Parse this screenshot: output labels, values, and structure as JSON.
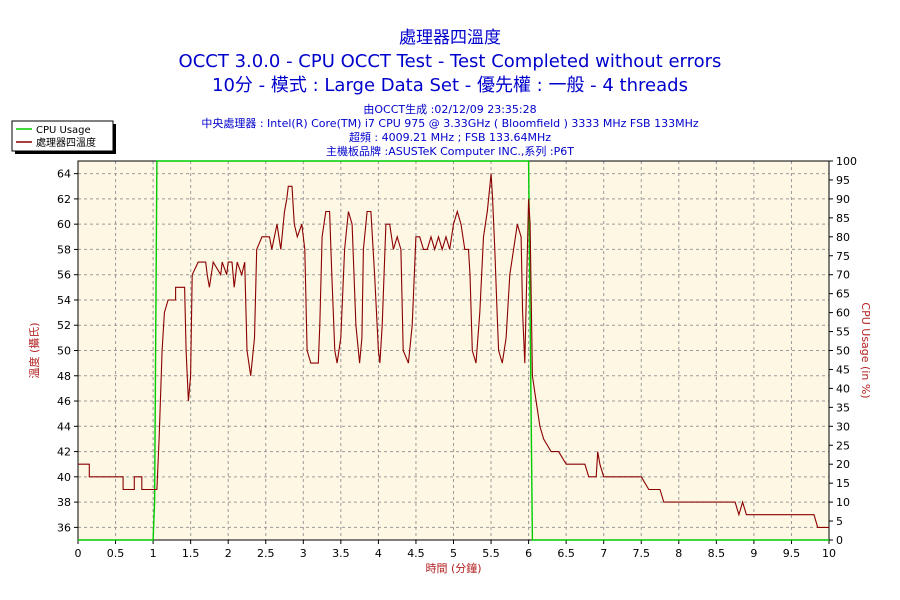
{
  "header": {
    "title": "處理器四溫度",
    "subtitle1": "OCCT 3.0.0 - CPU OCCT Test - Test Completed without errors",
    "subtitle2": "10分 - 模式 : Large Data Set - 優先權 : 一般 - 4 threads"
  },
  "info": {
    "line1": "由OCCT生成 :02/12/09 23:35:28",
    "line2": "中央處理器 : Intel(R) Core(TM) i7 CPU 975 @ 3.33GHz ( Bloomfield ) 3333 MHz FSB 133MHz",
    "line3": "超頻 : 4009.21 MHz ; FSB 133.64MHz",
    "line4": "主機板品牌 :ASUSTeK Computer INC.,系列 :P6T"
  },
  "colors": {
    "plot_bg": "#fdf7e4",
    "temp_line": "#8b0000",
    "cpu_line": "#00cc00",
    "axis_label": "#b22222"
  },
  "chart_data": {
    "type": "line",
    "xlabel": "時間 (分鐘)",
    "ylabel_left": "溫度 (攝氏)",
    "ylabel_right": "CPU Usage (in %)",
    "xlim": [
      0,
      10
    ],
    "ylim_left": [
      35,
      65
    ],
    "ylim_right": [
      0,
      100
    ],
    "x_ticks": [
      "0",
      "0.5",
      "1",
      "1.5",
      "2",
      "2.5",
      "3",
      "3.5",
      "4",
      "4.5",
      "5",
      "5.5",
      "6",
      "6.5",
      "7",
      "7.5",
      "8",
      "8.5",
      "9",
      "9.5",
      "10"
    ],
    "y_ticks_left": [
      "36",
      "38",
      "40",
      "42",
      "44",
      "46",
      "48",
      "50",
      "52",
      "54",
      "56",
      "58",
      "60",
      "62",
      "64"
    ],
    "y_ticks_right": [
      "0",
      "5",
      "10",
      "15",
      "20",
      "25",
      "30",
      "35",
      "40",
      "45",
      "50",
      "55",
      "60",
      "65",
      "70",
      "75",
      "80",
      "85",
      "90",
      "95",
      "100"
    ],
    "grid": true,
    "legend_position": "top-left",
    "series": [
      {
        "name": "CPU Usage",
        "axis": "right",
        "color": "#00cc00",
        "points": [
          [
            0,
            0
          ],
          [
            1.0,
            0
          ],
          [
            1.02,
            10
          ],
          [
            1.05,
            100
          ],
          [
            1.08,
            100
          ],
          [
            1.1,
            100
          ],
          [
            2.75,
            100
          ],
          [
            2.77,
            100
          ],
          [
            2.8,
            100
          ],
          [
            2.85,
            100
          ],
          [
            4.55,
            100
          ],
          [
            4.6,
            100
          ],
          [
            4.65,
            100
          ],
          [
            6.0,
            100
          ],
          [
            6.02,
            60
          ],
          [
            6.05,
            0
          ],
          [
            10,
            0
          ]
        ]
      },
      {
        "name": "處理器四溫度",
        "axis": "left",
        "color": "#8b0000",
        "points": [
          [
            0.0,
            41
          ],
          [
            0.15,
            41
          ],
          [
            0.15,
            40
          ],
          [
            0.6,
            40
          ],
          [
            0.6,
            39
          ],
          [
            0.75,
            39
          ],
          [
            0.75,
            40
          ],
          [
            0.85,
            40
          ],
          [
            0.85,
            39
          ],
          [
            1.0,
            39
          ],
          [
            1.05,
            39
          ],
          [
            1.08,
            43
          ],
          [
            1.12,
            50
          ],
          [
            1.15,
            53
          ],
          [
            1.2,
            54
          ],
          [
            1.3,
            54
          ],
          [
            1.3,
            55
          ],
          [
            1.42,
            55
          ],
          [
            1.44,
            50
          ],
          [
            1.47,
            46
          ],
          [
            1.5,
            48
          ],
          [
            1.52,
            56
          ],
          [
            1.6,
            57
          ],
          [
            1.7,
            57
          ],
          [
            1.72,
            56
          ],
          [
            1.75,
            55
          ],
          [
            1.8,
            57
          ],
          [
            1.9,
            56
          ],
          [
            1.92,
            57
          ],
          [
            1.98,
            56
          ],
          [
            2.0,
            57
          ],
          [
            2.05,
            57
          ],
          [
            2.08,
            55
          ],
          [
            2.12,
            57
          ],
          [
            2.18,
            56
          ],
          [
            2.22,
            57
          ],
          [
            2.25,
            50
          ],
          [
            2.3,
            48
          ],
          [
            2.35,
            51
          ],
          [
            2.38,
            58
          ],
          [
            2.45,
            59
          ],
          [
            2.55,
            59
          ],
          [
            2.58,
            58
          ],
          [
            2.65,
            60
          ],
          [
            2.7,
            58
          ],
          [
            2.75,
            61
          ],
          [
            2.78,
            62
          ],
          [
            2.8,
            63
          ],
          [
            2.85,
            63
          ],
          [
            2.88,
            60
          ],
          [
            2.92,
            59
          ],
          [
            2.98,
            60
          ],
          [
            3.02,
            58
          ],
          [
            3.05,
            50
          ],
          [
            3.1,
            49
          ],
          [
            3.2,
            49
          ],
          [
            3.22,
            52
          ],
          [
            3.25,
            59
          ],
          [
            3.3,
            61
          ],
          [
            3.35,
            61
          ],
          [
            3.38,
            56
          ],
          [
            3.42,
            50
          ],
          [
            3.45,
            49
          ],
          [
            3.5,
            51
          ],
          [
            3.55,
            58
          ],
          [
            3.6,
            61
          ],
          [
            3.65,
            60
          ],
          [
            3.7,
            52
          ],
          [
            3.75,
            49
          ],
          [
            3.78,
            51
          ],
          [
            3.8,
            58
          ],
          [
            3.85,
            61
          ],
          [
            3.9,
            61
          ],
          [
            3.95,
            56
          ],
          [
            4.0,
            50
          ],
          [
            4.02,
            49
          ],
          [
            4.05,
            52
          ],
          [
            4.1,
            60
          ],
          [
            4.15,
            60
          ],
          [
            4.2,
            58
          ],
          [
            4.25,
            59
          ],
          [
            4.3,
            58
          ],
          [
            4.33,
            50
          ],
          [
            4.4,
            49
          ],
          [
            4.45,
            52
          ],
          [
            4.5,
            59
          ],
          [
            4.55,
            59
          ],
          [
            4.6,
            58
          ],
          [
            4.65,
            58
          ],
          [
            4.7,
            59
          ],
          [
            4.75,
            58
          ],
          [
            4.8,
            59
          ],
          [
            4.85,
            58
          ],
          [
            4.9,
            59
          ],
          [
            4.95,
            58
          ],
          [
            5.0,
            60
          ],
          [
            5.05,
            61
          ],
          [
            5.1,
            60
          ],
          [
            5.15,
            58
          ],
          [
            5.2,
            58
          ],
          [
            5.22,
            56
          ],
          [
            5.25,
            50
          ],
          [
            5.3,
            49
          ],
          [
            5.35,
            53
          ],
          [
            5.4,
            59
          ],
          [
            5.45,
            61
          ],
          [
            5.5,
            64
          ],
          [
            5.52,
            62
          ],
          [
            5.55,
            58
          ],
          [
            5.58,
            53
          ],
          [
            5.6,
            50
          ],
          [
            5.65,
            49
          ],
          [
            5.7,
            51
          ],
          [
            5.75,
            56
          ],
          [
            5.8,
            58
          ],
          [
            5.85,
            60
          ],
          [
            5.9,
            59
          ],
          [
            5.92,
            53
          ],
          [
            5.95,
            49
          ],
          [
            5.98,
            57
          ],
          [
            6.0,
            62
          ],
          [
            6.02,
            60
          ],
          [
            6.05,
            48
          ],
          [
            6.1,
            46
          ],
          [
            6.15,
            44
          ],
          [
            6.2,
            43
          ],
          [
            6.3,
            42
          ],
          [
            6.4,
            42
          ],
          [
            6.5,
            41
          ],
          [
            6.6,
            41
          ],
          [
            6.75,
            41
          ],
          [
            6.8,
            40
          ],
          [
            6.9,
            40
          ],
          [
            6.92,
            42
          ],
          [
            6.95,
            41
          ],
          [
            7.0,
            40
          ],
          [
            7.2,
            40
          ],
          [
            7.5,
            40
          ],
          [
            7.6,
            39
          ],
          [
            7.75,
            39
          ],
          [
            7.8,
            38
          ],
          [
            8.0,
            38
          ],
          [
            8.5,
            38
          ],
          [
            8.75,
            38
          ],
          [
            8.8,
            37
          ],
          [
            8.85,
            38
          ],
          [
            8.9,
            37
          ],
          [
            9.5,
            37
          ],
          [
            9.8,
            37
          ],
          [
            9.85,
            36
          ],
          [
            10.0,
            36
          ]
        ]
      }
    ]
  }
}
